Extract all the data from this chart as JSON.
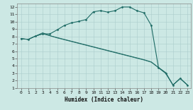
{
  "xlabel": "Humidex (Indice chaleur)",
  "bg_color": "#cce8e4",
  "grid_color": "#aacccc",
  "line_color": "#1e6b65",
  "xlim": [
    -0.5,
    23.5
  ],
  "ylim": [
    1,
    12.5
  ],
  "xticks": [
    0,
    1,
    2,
    3,
    4,
    5,
    6,
    7,
    8,
    9,
    10,
    11,
    12,
    13,
    14,
    15,
    16,
    17,
    18,
    19,
    20,
    21,
    22,
    23
  ],
  "yticks": [
    1,
    2,
    3,
    4,
    5,
    6,
    7,
    8,
    9,
    10,
    11,
    12
  ],
  "main_x": [
    0,
    1,
    2,
    3,
    4,
    5,
    6,
    7,
    8,
    9,
    10,
    11,
    12,
    13,
    14,
    15,
    16,
    17,
    18,
    19,
    20,
    21,
    22,
    23
  ],
  "main_y": [
    7.7,
    7.6,
    8.05,
    8.35,
    8.35,
    8.9,
    9.5,
    9.85,
    10.05,
    10.3,
    11.35,
    11.5,
    11.3,
    11.5,
    12.0,
    12.0,
    11.5,
    11.2,
    9.5,
    3.75,
    3.0,
    1.4,
    2.3,
    1.4
  ],
  "line2_x": [
    0,
    1,
    2,
    3,
    4,
    5,
    6,
    7,
    8,
    9,
    10,
    11,
    12,
    13,
    14,
    15,
    16,
    17,
    18,
    19,
    20,
    21,
    22,
    23
  ],
  "line2_y": [
    7.7,
    7.6,
    8.05,
    8.35,
    8.1,
    7.8,
    7.55,
    7.3,
    7.05,
    6.8,
    6.55,
    6.3,
    6.05,
    5.8,
    5.55,
    5.3,
    5.05,
    4.8,
    4.5,
    3.75,
    3.0,
    1.4,
    2.3,
    1.4
  ],
  "line3_x": [
    0,
    1,
    2,
    3,
    4,
    5,
    6,
    7,
    8,
    9,
    10,
    11,
    12,
    13,
    14,
    15,
    16,
    17,
    18,
    19,
    20,
    21,
    22,
    23
  ],
  "line3_y": [
    7.7,
    7.6,
    8.05,
    8.5,
    8.1,
    7.85,
    7.6,
    7.35,
    7.1,
    6.85,
    6.6,
    6.35,
    6.1,
    5.85,
    5.6,
    5.35,
    5.1,
    4.85,
    4.55,
    3.8,
    3.1,
    1.4,
    2.3,
    1.4
  ]
}
